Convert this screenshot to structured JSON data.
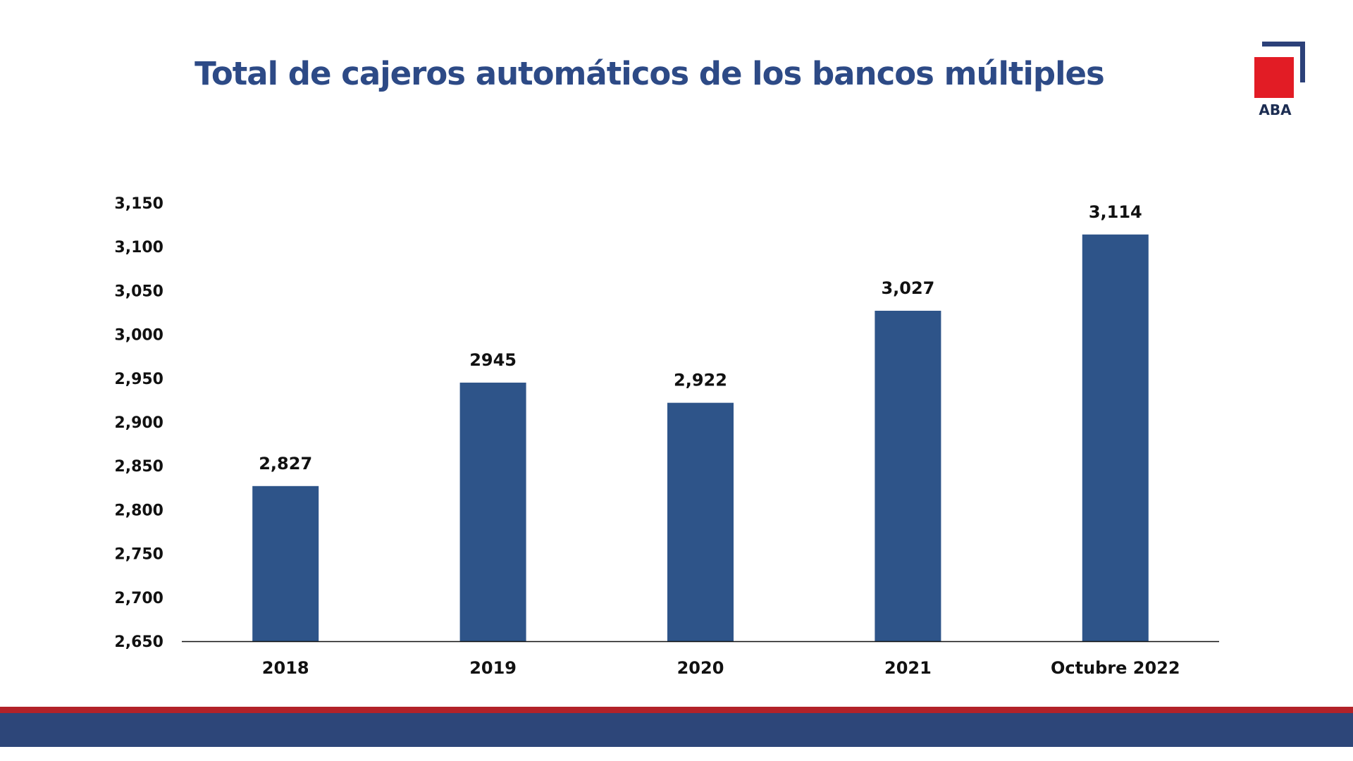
{
  "title": "Total de cajeros automáticos de los bancos múltiples",
  "logo": {
    "text": "ABA"
  },
  "colors": {
    "title": "#2d4a86",
    "bar": "#2e5489",
    "band_red": "#b22229",
    "band_blue": "#2d4679",
    "logo_red": "#e21c25",
    "logo_navy": "#2c4179"
  },
  "chart_data": {
    "type": "bar",
    "title": "Total de cajeros automáticos de los bancos múltiples",
    "xlabel": "",
    "ylabel": "",
    "categories": [
      "2018",
      "2019",
      "2020",
      "2021",
      "Octubre 2022"
    ],
    "values": [
      2827,
      2945,
      2922,
      3027,
      3114
    ],
    "data_labels": [
      "2,827",
      "2945",
      "2,922",
      "3,027",
      "3,114"
    ],
    "ylim": [
      2650,
      3150
    ],
    "yticks": [
      2650,
      2700,
      2750,
      2800,
      2850,
      2900,
      2950,
      3000,
      3050,
      3100,
      3150
    ],
    "ytick_labels": [
      "2,650",
      "2,700",
      "2,750",
      "2,800",
      "2,850",
      "2,900",
      "2,950",
      "3,000",
      "3,050",
      "3,100",
      "3,150"
    ],
    "grid": false,
    "legend": "none"
  }
}
